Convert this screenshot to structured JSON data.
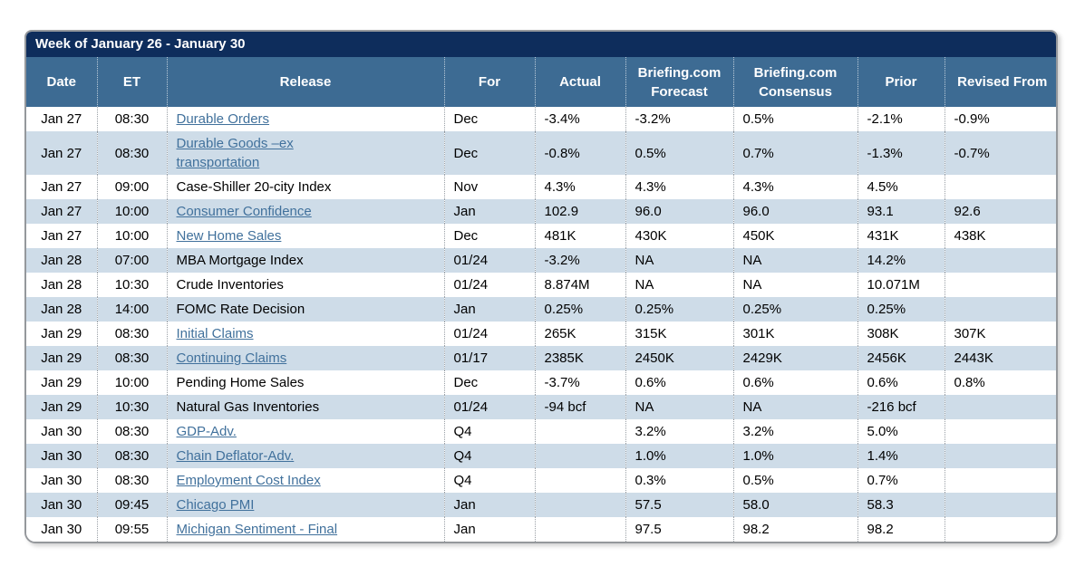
{
  "calendar": {
    "title": "Week of January 26 - January 30",
    "columns": [
      "Date",
      "ET",
      "Release",
      "For",
      "Actual",
      "Briefing.com Forecast",
      "Briefing.com Consensus",
      "Prior",
      "Revised From"
    ],
    "colors": {
      "title_bar": "#0E2D5C",
      "header": "#3D6B93",
      "stripe": "#CEDCE8",
      "link": "#41719C"
    },
    "rows": [
      {
        "date": "Jan 27",
        "et": "08:30",
        "release": "Durable Orders",
        "is_link": true,
        "for": "Dec",
        "actual": "-3.4%",
        "forecast": "-3.2%",
        "consensus": "0.5%",
        "prior": "-2.1%",
        "revised_from": "-0.9%"
      },
      {
        "date": "Jan 27",
        "et": "08:30",
        "release": "Durable Goods –ex\ntransportation",
        "is_link": true,
        "for": "Dec",
        "actual": "-0.8%",
        "forecast": "0.5%",
        "consensus": "0.7%",
        "prior": "-1.3%",
        "revised_from": "-0.7%"
      },
      {
        "date": "Jan 27",
        "et": "09:00",
        "release": "Case-Shiller 20-city Index",
        "is_link": false,
        "for": "Nov",
        "actual": "4.3%",
        "forecast": "4.3%",
        "consensus": "4.3%",
        "prior": "4.5%",
        "revised_from": ""
      },
      {
        "date": "Jan 27",
        "et": "10:00",
        "release": "Consumer Confidence",
        "is_link": true,
        "for": "Jan",
        "actual": "102.9",
        "forecast": "96.0",
        "consensus": "96.0",
        "prior": "93.1",
        "revised_from": "92.6"
      },
      {
        "date": "Jan 27",
        "et": "10:00",
        "release": "New Home Sales",
        "is_link": true,
        "for": "Dec",
        "actual": "481K",
        "forecast": "430K",
        "consensus": "450K",
        "prior": "431K",
        "revised_from": "438K"
      },
      {
        "date": "Jan 28",
        "et": "07:00",
        "release": "MBA Mortgage Index",
        "is_link": false,
        "for": "01/24",
        "actual": "-3.2%",
        "forecast": "NA",
        "consensus": "NA",
        "prior": "14.2%",
        "revised_from": ""
      },
      {
        "date": "Jan 28",
        "et": "10:30",
        "release": "Crude Inventories",
        "is_link": false,
        "for": "01/24",
        "actual": "8.874M",
        "forecast": "NA",
        "consensus": "NA",
        "prior": "10.071M",
        "revised_from": ""
      },
      {
        "date": "Jan 28",
        "et": "14:00",
        "release": "FOMC Rate Decision",
        "is_link": false,
        "for": "Jan",
        "actual": "0.25%",
        "forecast": "0.25%",
        "consensus": "0.25%",
        "prior": "0.25%",
        "revised_from": ""
      },
      {
        "date": "Jan 29",
        "et": "08:30",
        "release": "Initial Claims",
        "is_link": true,
        "for": "01/24",
        "actual": "265K",
        "forecast": "315K",
        "consensus": "301K",
        "prior": "308K",
        "revised_from": "307K"
      },
      {
        "date": "Jan 29",
        "et": "08:30",
        "release": "Continuing Claims",
        "is_link": true,
        "for": "01/17",
        "actual": "2385K",
        "forecast": "2450K",
        "consensus": "2429K",
        "prior": "2456K",
        "revised_from": "2443K"
      },
      {
        "date": "Jan 29",
        "et": "10:00",
        "release": "Pending Home Sales",
        "is_link": false,
        "for": "Dec",
        "actual": "-3.7%",
        "forecast": "0.6%",
        "consensus": "0.6%",
        "prior": "0.6%",
        "revised_from": "0.8%"
      },
      {
        "date": "Jan 29",
        "et": "10:30",
        "release": "Natural Gas Inventories",
        "is_link": false,
        "for": "01/24",
        "actual": "-94 bcf",
        "forecast": "NA",
        "consensus": "NA",
        "prior": "-216 bcf",
        "revised_from": ""
      },
      {
        "date": "Jan 30",
        "et": "08:30",
        "release": "GDP-Adv.",
        "is_link": true,
        "for": "Q4",
        "actual": "",
        "forecast": "3.2%",
        "consensus": "3.2%",
        "prior": "5.0%",
        "revised_from": ""
      },
      {
        "date": "Jan 30",
        "et": "08:30",
        "release": "Chain Deflator-Adv.",
        "is_link": true,
        "for": "Q4",
        "actual": "",
        "forecast": "1.0%",
        "consensus": "1.0%",
        "prior": "1.4%",
        "revised_from": ""
      },
      {
        "date": "Jan 30",
        "et": "08:30",
        "release": "Employment Cost Index",
        "is_link": true,
        "for": "Q4",
        "actual": "",
        "forecast": "0.3%",
        "consensus": "0.5%",
        "prior": "0.7%",
        "revised_from": ""
      },
      {
        "date": "Jan 30",
        "et": "09:45",
        "release": "Chicago PMI",
        "is_link": true,
        "for": "Jan",
        "actual": "",
        "forecast": "57.5",
        "consensus": "58.0",
        "prior": "58.3",
        "revised_from": ""
      },
      {
        "date": "Jan 30",
        "et": "09:55",
        "release": "Michigan Sentiment - Final",
        "is_link": true,
        "for": "Jan",
        "actual": "",
        "forecast": "97.5",
        "consensus": "98.2",
        "prior": "98.2",
        "revised_from": ""
      }
    ]
  }
}
